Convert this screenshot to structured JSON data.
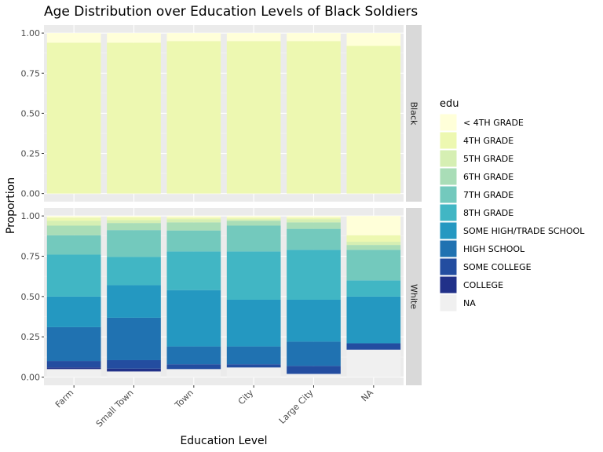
{
  "chart_data": {
    "type": "bar",
    "stacked": "proportion",
    "title": "Age Distribution over Education Levels of Black Soldiers",
    "xlabel": "Education Level",
    "ylabel": "Proportion",
    "ylim": [
      0,
      1
    ],
    "y_ticks": [
      "0.00",
      "0.25",
      "0.50",
      "0.75",
      "1.00"
    ],
    "y_tick_values": [
      0,
      0.25,
      0.5,
      0.75,
      1.0
    ],
    "grid": true,
    "legend_position": "right",
    "legend_title": "edu",
    "categories": [
      "Farm",
      "Small Town",
      "Town",
      "City",
      "Large City",
      "NA"
    ],
    "series": [
      {
        "name": "< 4TH GRADE",
        "color": "#ffffd9"
      },
      {
        "name": "4TH GRADE",
        "color": "#edf8b1"
      },
      {
        "name": "5TH GRADE",
        "color": "#d6efb3"
      },
      {
        "name": "6TH GRADE",
        "color": "#a9ddb7"
      },
      {
        "name": "7TH GRADE",
        "color": "#73c9bd"
      },
      {
        "name": "8TH GRADE",
        "color": "#41b6c4"
      },
      {
        "name": "SOME HIGH/TRADE SCHOOL",
        "color": "#2498c1"
      },
      {
        "name": "HIGH SCHOOL",
        "color": "#2072b1"
      },
      {
        "name": "SOME COLLEGE",
        "color": "#234da0"
      },
      {
        "name": "COLLEGE",
        "color": "#213189"
      },
      {
        "name": "NA",
        "color": "#f0f0f0"
      }
    ],
    "facets": [
      {
        "label": "Black",
        "categories": [
          "Farm",
          "Small Town",
          "Town",
          "City",
          "Large City",
          "NA"
        ],
        "values": [
          [
            0.06,
            0.94,
            0,
            0,
            0,
            0,
            0,
            0,
            0,
            0,
            0
          ],
          [
            0.06,
            0.94,
            0,
            0,
            0,
            0,
            0,
            0,
            0,
            0,
            0
          ],
          [
            0.05,
            0.95,
            0,
            0,
            0,
            0,
            0,
            0,
            0,
            0,
            0
          ],
          [
            0.05,
            0.95,
            0,
            0,
            0,
            0,
            0,
            0,
            0,
            0,
            0
          ],
          [
            0.05,
            0.95,
            0,
            0,
            0,
            0,
            0,
            0,
            0,
            0,
            0
          ],
          [
            0.08,
            0.92,
            0,
            0,
            0,
            0,
            0,
            0,
            0,
            0,
            0
          ]
        ]
      },
      {
        "label": "White",
        "categories": [
          "Farm",
          "Small Town",
          "Town",
          "City",
          "Large City",
          "NA"
        ],
        "values": [
          [
            0.01,
            0.02,
            0.03,
            0.06,
            0.12,
            0.26,
            0.19,
            0.21,
            0.04,
            0.01,
            0.05
          ],
          [
            0.01,
            0.02,
            0.02,
            0.05,
            0.19,
            0.2,
            0.23,
            0.3,
            0.06,
            0.02,
            0.04
          ],
          [
            0.01,
            0.01,
            0.02,
            0.05,
            0.13,
            0.24,
            0.35,
            0.11,
            0.03,
            0.0,
            0.05
          ],
          [
            0.01,
            0.01,
            0.01,
            0.03,
            0.16,
            0.3,
            0.29,
            0.11,
            0.02,
            0.0,
            0.06
          ],
          [
            0.01,
            0.01,
            0.02,
            0.04,
            0.13,
            0.31,
            0.26,
            0.15,
            0.05,
            0.0,
            0.02
          ],
          [
            0.12,
            0.04,
            0.02,
            0.03,
            0.19,
            0.1,
            0.29,
            0.0,
            0.04,
            0.0,
            0.17
          ]
        ]
      }
    ]
  }
}
